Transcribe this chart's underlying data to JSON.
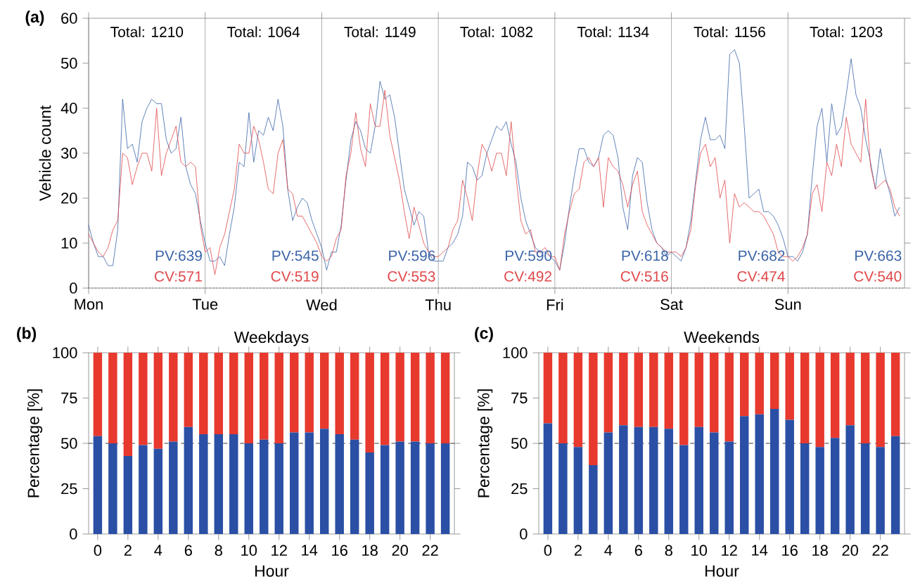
{
  "chart_data": [
    {
      "type": "line",
      "ylabel": "Vehicle count",
      "ylim": [
        0,
        60
      ],
      "yticks": [
        0,
        10,
        20,
        30,
        40,
        50,
        60
      ],
      "grid": "x",
      "categories": [
        "Mon",
        null,
        null,
        null,
        null,
        null,
        null,
        null,
        null,
        null,
        null,
        null,
        null,
        null,
        null,
        null,
        null,
        null,
        null,
        null,
        null,
        null,
        null,
        null,
        "Tue",
        null,
        null,
        null,
        null,
        null,
        null,
        null,
        null,
        null,
        null,
        null,
        null,
        null,
        null,
        null,
        null,
        null,
        null,
        null,
        null,
        null,
        null,
        null,
        "Wed",
        null,
        null,
        null,
        null,
        null,
        null,
        null,
        null,
        null,
        null,
        null,
        null,
        null,
        null,
        null,
        null,
        null,
        null,
        null,
        null,
        null,
        null,
        null,
        "Thu",
        null,
        null,
        null,
        null,
        null,
        null,
        null,
        null,
        null,
        null,
        null,
        null,
        null,
        null,
        null,
        null,
        null,
        null,
        null,
        null,
        null,
        null,
        null,
        "Fri",
        null,
        null,
        null,
        null,
        null,
        null,
        null,
        null,
        null,
        null,
        null,
        null,
        null,
        null,
        null,
        null,
        null,
        null,
        null,
        null,
        null,
        null,
        null,
        "Sat",
        null,
        null,
        null,
        null,
        null,
        null,
        null,
        null,
        null,
        null,
        null,
        null,
        null,
        null,
        null,
        null,
        null,
        null,
        null,
        null,
        null,
        null,
        null,
        "Sun",
        null,
        null,
        null,
        null,
        null,
        null,
        null,
        null,
        null,
        null,
        null,
        null,
        null,
        null,
        null,
        null,
        null,
        null,
        null,
        null,
        null,
        null,
        null
      ],
      "series": [
        {
          "color": "#3b64a8",
          "values": [
            14,
            10,
            7,
            7,
            5,
            5,
            13,
            42,
            31,
            32,
            28,
            37,
            40,
            42,
            41,
            41,
            33,
            30,
            31,
            38,
            27,
            23,
            21,
            15,
            10,
            6,
            6,
            7,
            5,
            12,
            18,
            28,
            27,
            39,
            28,
            35,
            34,
            38,
            35,
            42,
            36,
            22,
            15,
            18,
            20,
            19,
            15,
            12,
            9,
            4,
            8,
            8,
            14,
            24,
            33,
            37,
            35,
            31,
            30,
            36,
            46,
            42,
            43,
            38,
            30,
            22,
            18,
            14,
            17,
            16,
            8,
            6,
            6,
            6,
            9,
            10,
            12,
            16,
            28,
            27,
            24,
            25,
            30,
            33,
            36,
            35,
            37,
            32,
            28,
            20,
            15,
            12,
            9,
            8,
            8,
            7,
            6,
            4,
            10,
            18,
            25,
            31,
            31,
            28,
            27,
            29,
            34,
            35,
            34,
            29,
            18,
            13,
            25,
            29,
            28,
            19,
            13,
            10,
            9,
            7,
            8,
            7,
            6,
            9,
            15,
            24,
            33,
            38,
            33,
            33,
            34,
            31,
            52,
            53,
            50,
            36,
            20,
            21,
            22,
            17,
            17,
            16,
            14,
            11,
            7,
            7,
            6,
            8,
            12,
            25,
            36,
            40,
            28,
            41,
            34,
            36,
            43,
            51,
            43,
            40,
            33,
            28,
            22,
            31,
            25,
            21,
            16,
            18
          ]
        },
        {
          "color": "#e0474a",
          "values": [
            12,
            10,
            8,
            7,
            9,
            13,
            15,
            30,
            29,
            23,
            27,
            30,
            30,
            26,
            40,
            25,
            30,
            33,
            36,
            28,
            27,
            28,
            27,
            14,
            8,
            9,
            3,
            9,
            12,
            17,
            22,
            32,
            30,
            30,
            36,
            33,
            28,
            22,
            21,
            30,
            33,
            22,
            21,
            16,
            16,
            14,
            12,
            10,
            7,
            6,
            7,
            11,
            13,
            25,
            30,
            39,
            31,
            27,
            41,
            36,
            36,
            44,
            34,
            29,
            24,
            17,
            11,
            18,
            14,
            10,
            8,
            7,
            7,
            8,
            9,
            13,
            15,
            24,
            20,
            15,
            25,
            32,
            30,
            26,
            30,
            30,
            25,
            37,
            25,
            15,
            12,
            13,
            8,
            8,
            9,
            7,
            7,
            4,
            12,
            17,
            21,
            22,
            28,
            29,
            27,
            29,
            18,
            29,
            27,
            26,
            23,
            18,
            23,
            26,
            17,
            14,
            12,
            10,
            9,
            8,
            8,
            8,
            7,
            9,
            13,
            23,
            30,
            32,
            27,
            29,
            20,
            24,
            10,
            21,
            18,
            19,
            18,
            17,
            17,
            16,
            14,
            12,
            8,
            7,
            7,
            6,
            7,
            9,
            12,
            21,
            23,
            17,
            28,
            25,
            32,
            27,
            38,
            32,
            30,
            28,
            42,
            27,
            22,
            23,
            24,
            22,
            18,
            16
          ]
        }
      ],
      "ref_lines": [
        {
          "axis": "y",
          "value": 0,
          "color": "#000000",
          "line_style": "dotted"
        }
      ],
      "annotations": [
        "(a)",
        "Total: 1210",
        "PV:639",
        "CV:571",
        "Total: 1064",
        "PV:545",
        "CV:519",
        "Total: 1149",
        "PV:596",
        "CV:553",
        "Total: 1082",
        "PV:590",
        "CV:492",
        "Total: 1134",
        "PV:618",
        "CV:516",
        "Total: 1156",
        "PV:682",
        "CV:474",
        "Total: 1203",
        "PV:663",
        "CV:540"
      ]
    },
    {
      "type": "bar",
      "stacked": true,
      "title": "Weekdays",
      "xlabel": "Hour",
      "ylabel": "Percentage [%]",
      "ylim": [
        0,
        100
      ],
      "yticks": [
        0,
        25,
        50,
        75,
        100
      ],
      "categories": [
        "0",
        null,
        "2",
        null,
        "4",
        null,
        "6",
        null,
        "8",
        null,
        "10",
        null,
        "12",
        null,
        "14",
        null,
        "16",
        null,
        "18",
        null,
        "20",
        null,
        "22",
        null
      ],
      "series": [
        {
          "color": "#2a4fa5",
          "values": [
            54,
            50,
            43,
            49,
            47,
            51,
            59,
            55,
            55,
            55,
            50,
            52,
            50,
            56,
            56,
            58,
            55,
            52,
            45,
            49,
            51,
            51,
            50,
            50
          ]
        },
        {
          "color": "#e8392e",
          "values": [
            46,
            50,
            57,
            51,
            53,
            49,
            41,
            45,
            45,
            45,
            50,
            48,
            50,
            44,
            44,
            42,
            45,
            48,
            55,
            51,
            49,
            49,
            50,
            50
          ]
        }
      ],
      "ref_lines": [
        {
          "axis": "y",
          "value": 50,
          "color": "#000000",
          "line_style": "dashed"
        }
      ],
      "annotations": [
        "(b)"
      ]
    },
    {
      "type": "bar",
      "stacked": true,
      "title": "Weekends",
      "xlabel": "Hour",
      "ylabel": "Percentage [%]",
      "ylim": [
        0,
        100
      ],
      "yticks": [
        0,
        25,
        50,
        75,
        100
      ],
      "categories": [
        "0",
        null,
        "2",
        null,
        "4",
        null,
        "6",
        null,
        "8",
        null,
        "10",
        null,
        "12",
        null,
        "14",
        null,
        "16",
        null,
        "18",
        null,
        "20",
        null,
        "22",
        null
      ],
      "series": [
        {
          "color": "#2a4fa5",
          "values": [
            61,
            50,
            48,
            38,
            56,
            60,
            59,
            59,
            58,
            49,
            59,
            56,
            51,
            65,
            66,
            69,
            63,
            50,
            48,
            53,
            60,
            50,
            48,
            54
          ]
        },
        {
          "color": "#e8392e",
          "values": [
            39,
            50,
            52,
            62,
            44,
            40,
            41,
            41,
            42,
            51,
            41,
            44,
            49,
            35,
            34,
            31,
            37,
            50,
            52,
            47,
            40,
            50,
            52,
            46
          ]
        }
      ],
      "ref_lines": [
        {
          "axis": "y",
          "value": 50,
          "color": "#000000",
          "line_style": "dashed"
        }
      ],
      "annotations": [
        "(c)"
      ]
    }
  ]
}
